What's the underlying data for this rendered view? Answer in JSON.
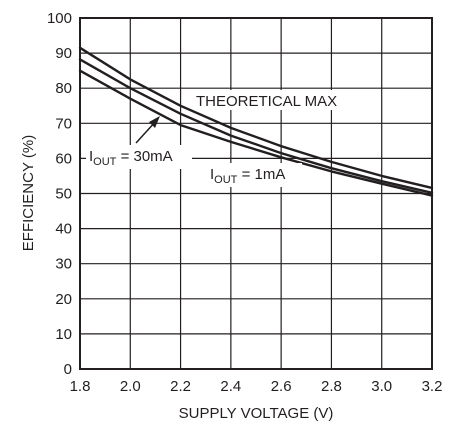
{
  "chart_data": {
    "type": "line",
    "title": "",
    "xlabel": "SUPPLY VOLTAGE (V)",
    "ylabel": "EFFICIENCY (%)",
    "xlim": [
      1.8,
      3.2
    ],
    "ylim": [
      0,
      100
    ],
    "grid": true,
    "xticks": [
      "1.8",
      "2.0",
      "2.2",
      "2.4",
      "2.6",
      "2.8",
      "3.0",
      "3.2"
    ],
    "yticks": [
      "0",
      "10",
      "20",
      "30",
      "40",
      "50",
      "60",
      "70",
      "80",
      "90",
      "100"
    ],
    "series": [
      {
        "name": "THEORETICAL MAX",
        "x": [
          1.8,
          2.0,
          2.2,
          2.4,
          2.6,
          2.8,
          3.0,
          3.2
        ],
        "y": [
          91.5,
          82.5,
          75.0,
          68.7,
          63.5,
          59.0,
          55.0,
          51.6
        ]
      },
      {
        "name": "30mA",
        "x": [
          1.8,
          2.0,
          2.2,
          2.4,
          2.6,
          2.8,
          3.0,
          3.2
        ],
        "y": [
          88.2,
          80.0,
          72.7,
          66.5,
          61.5,
          57.2,
          53.5,
          50.2
        ]
      },
      {
        "name": "1mA",
        "x": [
          1.8,
          2.0,
          2.2,
          2.4,
          2.6,
          2.8,
          3.0,
          3.2
        ],
        "y": [
          85.0,
          77.0,
          69.5,
          64.7,
          60.3,
          56.3,
          52.8,
          49.4
        ]
      }
    ],
    "annotations": {
      "max": "THEORETICAL MAX",
      "i30_main": "I",
      "i30_sub": "OUT",
      "i30_rest": " = 30mA",
      "i1_main": "I",
      "i1_sub": "OUT",
      "i1_rest": " = 1mA"
    }
  }
}
